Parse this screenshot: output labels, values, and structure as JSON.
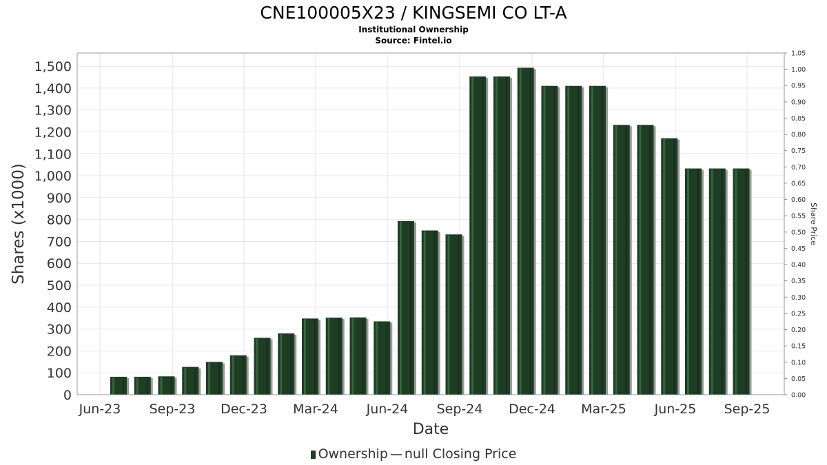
{
  "chart_data": {
    "type": "bar",
    "title": "CNE100005X23 / KINGSEMI CO LT-A",
    "subtitle_lines": [
      "Institutional Ownership",
      "Source: Fintel.io"
    ],
    "xlabel": "Date",
    "ylabel": "Shares (x1000)",
    "y2label": "Share Price",
    "ylim": [
      0,
      1560
    ],
    "y2lim": [
      0,
      1.05
    ],
    "yticks": [
      "0",
      "100",
      "200",
      "300",
      "400",
      "500",
      "600",
      "700",
      "800",
      "900",
      "1,000",
      "1,100",
      "1,200",
      "1,300",
      "1,400",
      "1,500"
    ],
    "y2ticks": [
      "0.00",
      "0.05",
      "0.10",
      "0.15",
      "0.20",
      "0.25",
      "0.30",
      "0.35",
      "0.40",
      "0.45",
      "0.50",
      "0.55",
      "0.60",
      "0.65",
      "0.70",
      "0.75",
      "0.80",
      "0.85",
      "0.90",
      "0.95",
      "1.00",
      "1.05"
    ],
    "xticks": [
      "Jun-23",
      "Sep-23",
      "Dec-23",
      "Mar-24",
      "Jun-24",
      "Sep-24",
      "Dec-24",
      "Mar-25",
      "Jun-25",
      "Sep-25"
    ],
    "grid": true,
    "legend_placement": "bottom-center",
    "series": [
      {
        "name": "Ownership",
        "color": "#1e3d24",
        "values": [
          82,
          82,
          84,
          127,
          150,
          180,
          260,
          280,
          348,
          352,
          353,
          335,
          793,
          750,
          732,
          1453,
          1453,
          1493,
          1410,
          1410,
          1410,
          1232,
          1232,
          1171,
          1033,
          1033,
          1033
        ]
      }
    ],
    "price_series_name": "null Closing Price"
  }
}
